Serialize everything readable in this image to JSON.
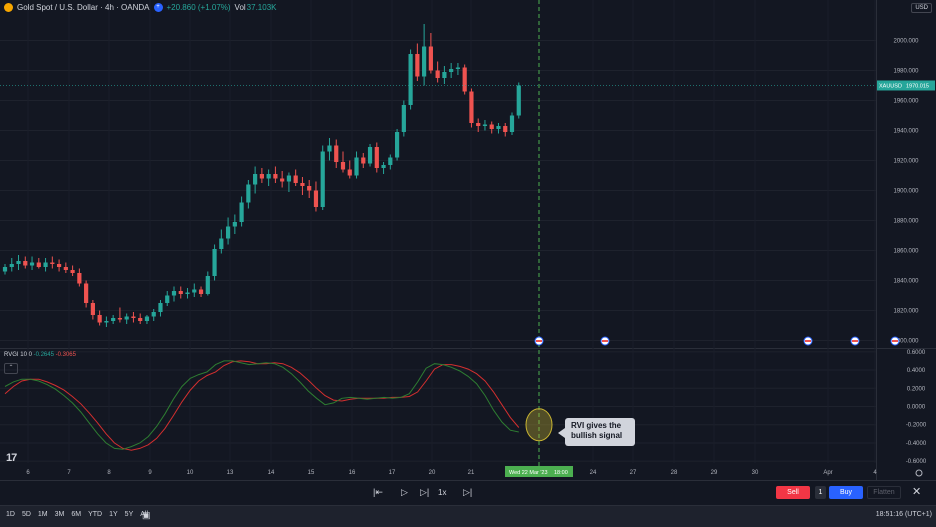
{
  "header": {
    "symbol_title": "Gold Spot / U.S. Dollar · 4h · OANDA",
    "change": "+20.860 (+1.07%)",
    "vol_label": "Vol",
    "vol_value": "37.103K",
    "plus_icon": "plus-icon",
    "logo_icon": "gold-logo-icon"
  },
  "currency_button": "USD",
  "price_axis": {
    "ticks": [
      "2000.000",
      "1980.000",
      "1960.000",
      "1940.000",
      "1920.000",
      "1900.000",
      "1880.000",
      "1860.000",
      "1840.000",
      "1820.000",
      "1800.000"
    ],
    "last_symbol": "XAUUSD",
    "last_price": "1970.015"
  },
  "indicator": {
    "name": "RVGI 10 0",
    "value1": "-0.2645",
    "value2": "-0.3065",
    "axis_ticks": [
      "0.6000",
      "0.4000",
      "0.2000",
      "0.0000",
      "-0.2000",
      "-0.4000",
      "-0.6000"
    ],
    "collapse_icon": "chevron-up-icon"
  },
  "time_axis": {
    "labels": [
      "6",
      "7",
      "8",
      "9",
      "10",
      "13",
      "14",
      "15",
      "16",
      "17",
      "20",
      "21",
      "24",
      "27",
      "28",
      "29",
      "30",
      "Apr",
      "4"
    ],
    "cursor_date": "Wed 22 Mar '23",
    "cursor_time": "18:00",
    "cursor_label_after": "24"
  },
  "callout": {
    "text": "RVI gives the bullish signal"
  },
  "replay_bar": {
    "speed": "1x",
    "sell_label": "Sell",
    "quantity": "1",
    "buy_label": "Buy",
    "flatten_label": "Flatten",
    "icons": [
      "jump-to-bar-icon",
      "play-icon",
      "step-forward-icon",
      "speed-label",
      "jump-to-realtime-icon",
      "close-icon"
    ]
  },
  "bottom_bar": {
    "ranges": [
      "1D",
      "5D",
      "1M",
      "3M",
      "6M",
      "YTD",
      "1Y",
      "5Y",
      "All"
    ],
    "clock": "18:51:16 (UTC+1)"
  },
  "colors": {
    "background": "#131722",
    "up": "#26a69a",
    "down": "#ef5350",
    "rvi_green": "#2e7d32",
    "rvi_red": "#d32f2f",
    "cursor_line": "#4caf50"
  },
  "chart_data": {
    "type": "candlestick",
    "candles": [
      [
        1846,
        1851,
        1844,
        1849
      ],
      [
        1849,
        1855,
        1846,
        1851
      ],
      [
        1851,
        1857,
        1847,
        1853
      ],
      [
        1853,
        1856,
        1848,
        1850
      ],
      [
        1850,
        1856,
        1847,
        1852
      ],
      [
        1852,
        1855,
        1848,
        1849
      ],
      [
        1849,
        1855,
        1846,
        1852
      ],
      [
        1852,
        1856,
        1848,
        1851
      ],
      [
        1851,
        1854,
        1846,
        1849
      ],
      [
        1849,
        1852,
        1845,
        1847
      ],
      [
        1847,
        1850,
        1843,
        1845
      ],
      [
        1845,
        1848,
        1836,
        1838
      ],
      [
        1838,
        1840,
        1822,
        1825
      ],
      [
        1825,
        1827,
        1814,
        1817
      ],
      [
        1817,
        1820,
        1810,
        1812
      ],
      [
        1812,
        1816,
        1809,
        1813
      ],
      [
        1813,
        1817,
        1811,
        1815
      ],
      [
        1815,
        1822,
        1812,
        1814
      ],
      [
        1814,
        1818,
        1811,
        1816
      ],
      [
        1816,
        1819,
        1812,
        1815
      ],
      [
        1815,
        1818,
        1811,
        1813
      ],
      [
        1813,
        1817,
        1811,
        1816
      ],
      [
        1816,
        1821,
        1813,
        1819
      ],
      [
        1819,
        1827,
        1816,
        1825
      ],
      [
        1825,
        1833,
        1823,
        1830
      ],
      [
        1830,
        1836,
        1826,
        1833
      ],
      [
        1833,
        1836,
        1828,
        1831
      ],
      [
        1831,
        1835,
        1828,
        1832
      ],
      [
        1832,
        1838,
        1829,
        1834
      ],
      [
        1834,
        1836,
        1829,
        1831
      ],
      [
        1831,
        1846,
        1830,
        1843
      ],
      [
        1843,
        1864,
        1840,
        1861
      ],
      [
        1861,
        1874,
        1858,
        1868
      ],
      [
        1868,
        1882,
        1864,
        1876
      ],
      [
        1876,
        1884,
        1871,
        1879
      ],
      [
        1879,
        1896,
        1876,
        1892
      ],
      [
        1892,
        1907,
        1888,
        1904
      ],
      [
        1904,
        1916,
        1898,
        1911
      ],
      [
        1911,
        1915,
        1905,
        1908
      ],
      [
        1908,
        1914,
        1903,
        1911
      ],
      [
        1911,
        1916,
        1905,
        1908
      ],
      [
        1908,
        1913,
        1902,
        1906
      ],
      [
        1906,
        1912,
        1899,
        1910
      ],
      [
        1910,
        1914,
        1903,
        1905
      ],
      [
        1905,
        1909,
        1897,
        1903
      ],
      [
        1903,
        1907,
        1895,
        1900
      ],
      [
        1900,
        1906,
        1886,
        1889
      ],
      [
        1889,
        1930,
        1887,
        1926
      ],
      [
        1926,
        1935,
        1920,
        1930
      ],
      [
        1930,
        1934,
        1915,
        1919
      ],
      [
        1919,
        1926,
        1912,
        1914
      ],
      [
        1914,
        1920,
        1908,
        1910
      ],
      [
        1910,
        1926,
        1908,
        1922
      ],
      [
        1922,
        1925,
        1915,
        1918
      ],
      [
        1918,
        1931,
        1916,
        1929
      ],
      [
        1929,
        1932,
        1912,
        1915
      ],
      [
        1915,
        1919,
        1911,
        1917
      ],
      [
        1917,
        1924,
        1914,
        1922
      ],
      [
        1922,
        1941,
        1920,
        1939
      ],
      [
        1939,
        1960,
        1936,
        1957
      ],
      [
        1957,
        1994,
        1954,
        1991
      ],
      [
        1991,
        1998,
        1973,
        1976
      ],
      [
        1976,
        2011,
        1970,
        1996
      ],
      [
        1996,
        2005,
        1978,
        1980
      ],
      [
        1980,
        1986,
        1972,
        1975
      ],
      [
        1975,
        1983,
        1971,
        1979
      ],
      [
        1979,
        1985,
        1975,
        1981
      ],
      [
        1981,
        1985,
        1977,
        1982
      ],
      [
        1982,
        1984,
        1964,
        1966
      ],
      [
        1966,
        1968,
        1942,
        1945
      ],
      [
        1945,
        1948,
        1939,
        1943
      ],
      [
        1943,
        1947,
        1940,
        1944
      ],
      [
        1944,
        1946,
        1938,
        1941
      ],
      [
        1941,
        1945,
        1938,
        1943
      ],
      [
        1943,
        1945,
        1936,
        1939
      ],
      [
        1939,
        1952,
        1937,
        1950
      ],
      [
        1950,
        1972,
        1948,
        1970
      ]
    ],
    "rvgi": [
      0.22,
      0.27,
      0.3,
      0.3,
      0.28,
      0.24,
      0.19,
      0.12,
      0.04,
      -0.06,
      -0.18,
      -0.3,
      -0.4,
      -0.46,
      -0.47,
      -0.44,
      -0.4,
      -0.33,
      -0.22,
      -0.08,
      0.08,
      0.22,
      0.31,
      0.35,
      0.38,
      0.46,
      0.5,
      0.5,
      0.48,
      0.46,
      0.47,
      0.48,
      0.47,
      0.43,
      0.36,
      0.27,
      0.17,
      0.09,
      0.02,
      0.04,
      0.09,
      0.1,
      0.09,
      0.08,
      0.09,
      0.1,
      0.09,
      0.1,
      0.14,
      0.27,
      0.42,
      0.47,
      0.46,
      0.43,
      0.39,
      0.33,
      0.25,
      0.12,
      -0.04,
      -0.17,
      -0.26,
      -0.28
    ],
    "rvgi_signal": [
      0.14,
      0.22,
      0.28,
      0.3,
      0.3,
      0.27,
      0.23,
      0.18,
      0.11,
      0.03,
      -0.07,
      -0.18,
      -0.3,
      -0.4,
      -0.46,
      -0.48,
      -0.46,
      -0.42,
      -0.35,
      -0.24,
      -0.1,
      0.05,
      0.18,
      0.28,
      0.34,
      0.38,
      0.45,
      0.49,
      0.5,
      0.49,
      0.47,
      0.47,
      0.48,
      0.47,
      0.43,
      0.37,
      0.29,
      0.2,
      0.12,
      0.07,
      0.06,
      0.08,
      0.09,
      0.09,
      0.09,
      0.09,
      0.1,
      0.1,
      0.11,
      0.16,
      0.28,
      0.41,
      0.46,
      0.46,
      0.44,
      0.41,
      0.36,
      0.28,
      0.16,
      0.02,
      -0.12,
      -0.23
    ],
    "ylim_price": [
      1795,
      2015
    ],
    "ylim_rvgi": [
      -0.62,
      0.62
    ]
  }
}
